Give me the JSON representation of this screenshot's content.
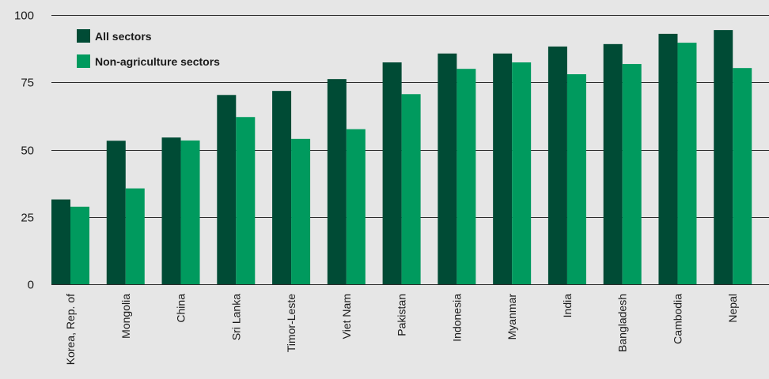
{
  "chart_data": {
    "type": "bar",
    "title": "",
    "xlabel": "",
    "ylabel": "",
    "ylim": [
      0,
      100
    ],
    "yticks": [
      0,
      25,
      50,
      75,
      100
    ],
    "grid": true,
    "legend_position": "top-left",
    "categories": [
      "Korea, Rep. of",
      "Mongolia",
      "China",
      "Sri Lanka",
      "Timor-Leste",
      "Viet Nam",
      "Pakistan",
      "Indonesia",
      "Myanmar",
      "India",
      "Bangladesh",
      "Cambodia",
      "Nepal"
    ],
    "series": [
      {
        "name": "All sectors",
        "color": "#004b35",
        "values": [
          31.5,
          53.3,
          54.5,
          70.3,
          71.8,
          76.2,
          82.4,
          85.7,
          85.7,
          88.3,
          89.2,
          93.0,
          94.4
        ]
      },
      {
        "name": "Non-agriculture sectors",
        "color": "#009a5e",
        "values": [
          28.8,
          35.6,
          53.4,
          62.1,
          54.0,
          57.6,
          70.6,
          80.0,
          82.4,
          78.0,
          81.8,
          89.7,
          80.3
        ]
      }
    ]
  }
}
